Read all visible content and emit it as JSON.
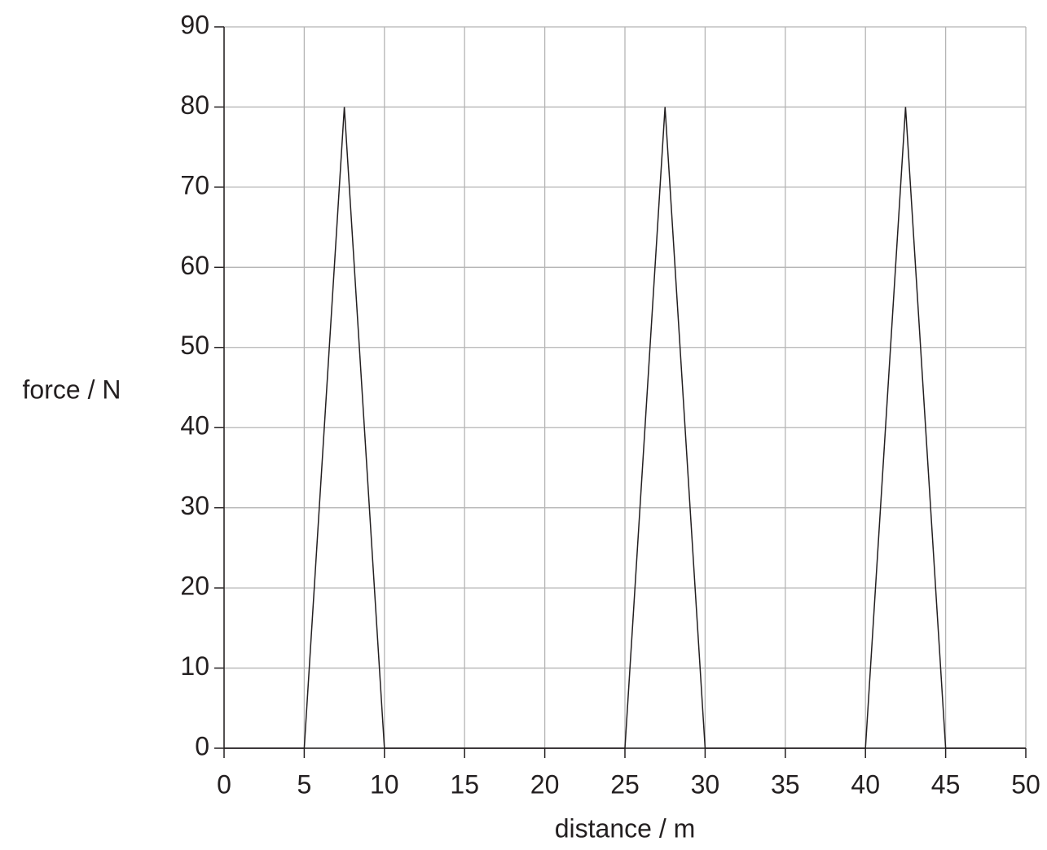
{
  "chart_data": {
    "type": "line",
    "xlabel": "distance / m",
    "ylabel": "force / N",
    "x": [
      0,
      5,
      7.5,
      10,
      25,
      27.5,
      30,
      40,
      42.5,
      45,
      50
    ],
    "series": [
      {
        "color": "#231f20",
        "values": [
          0,
          0,
          80,
          0,
          0,
          80,
          0,
          0,
          80,
          0,
          0
        ]
      }
    ],
    "xlim": [
      0,
      50
    ],
    "xticks": [
      0,
      5,
      10,
      15,
      20,
      25,
      30,
      35,
      40,
      45,
      50
    ],
    "ylim": [
      0,
      90
    ],
    "yticks": [
      0,
      10,
      20,
      30,
      40,
      50,
      60,
      70,
      80,
      90
    ],
    "grid": true
  }
}
